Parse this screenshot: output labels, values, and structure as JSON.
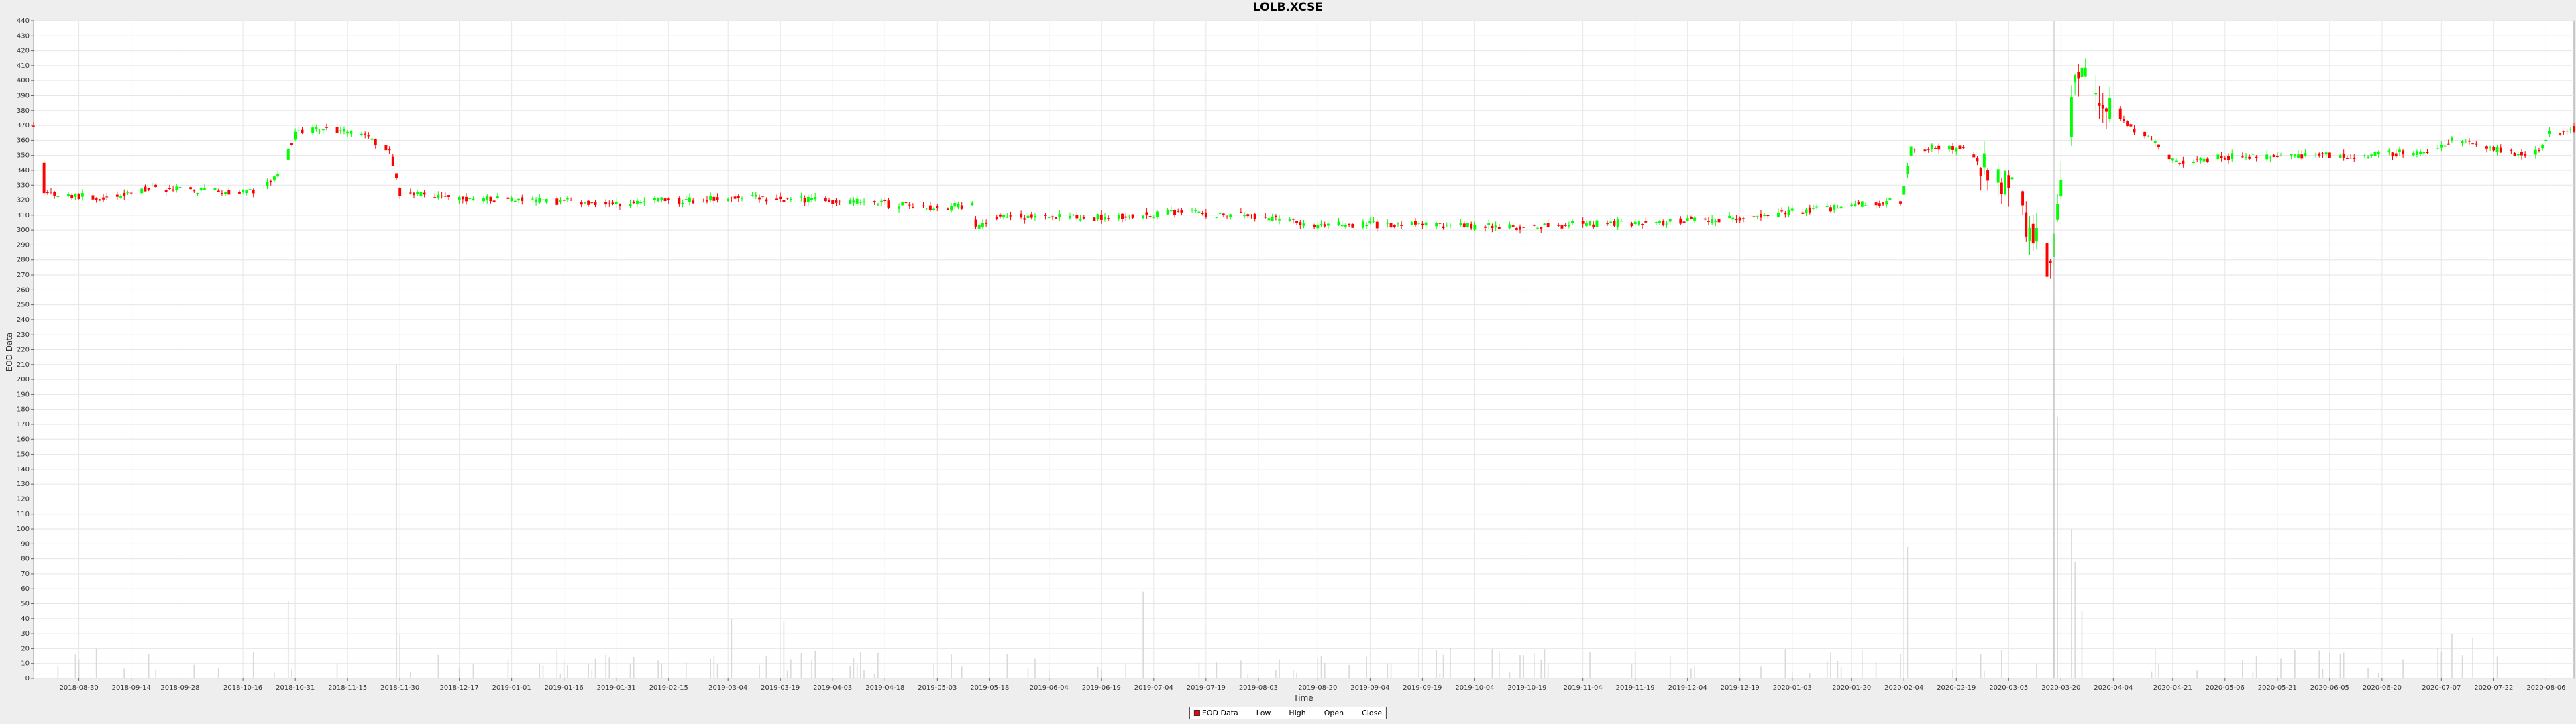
{
  "chart_data": {
    "type": "candlestick",
    "title": "LOLB.XCSE",
    "xlabel": "Time",
    "ylabel": "EOD Data",
    "ylim": [
      0,
      440
    ],
    "y_ticks": [
      0,
      10,
      20,
      30,
      40,
      50,
      60,
      70,
      80,
      90,
      100,
      110,
      120,
      130,
      140,
      150,
      160,
      170,
      180,
      190,
      200,
      210,
      220,
      230,
      240,
      250,
      260,
      270,
      280,
      290,
      300,
      310,
      320,
      330,
      340,
      350,
      360,
      370,
      380,
      390,
      400,
      410,
      420,
      430,
      440
    ],
    "x_range": [
      "2018-08-17",
      "2020-08-14"
    ],
    "x_ticks": [
      "2018-08-30",
      "2018-09-14",
      "2018-09-28",
      "2018-10-16",
      "2018-10-31",
      "2018-11-15",
      "2018-11-30",
      "2018-12-17",
      "2019-01-01",
      "2019-01-16",
      "2019-01-31",
      "2019-02-15",
      "2019-03-04",
      "2019-03-19",
      "2019-04-03",
      "2019-04-18",
      "2019-05-03",
      "2019-05-18",
      "2019-06-04",
      "2019-06-19",
      "2019-07-04",
      "2019-07-19",
      "2019-08-03",
      "2019-08-20",
      "2019-09-04",
      "2019-09-19",
      "2019-10-04",
      "2019-10-19",
      "2019-11-04",
      "2019-11-19",
      "2019-12-04",
      "2019-12-19",
      "2020-01-03",
      "2020-01-20",
      "2020-02-04",
      "2020-02-19",
      "2020-03-05",
      "2020-03-20",
      "2020-04-04",
      "2020-04-21",
      "2020-05-06",
      "2020-05-21",
      "2020-06-05",
      "2020-06-20",
      "2020-07-07",
      "2020-07-22",
      "2020-08-06"
    ],
    "grid": true,
    "legend_position": "bottom-center",
    "legend": [
      "EOD Data",
      "Low",
      "High",
      "Open",
      "Close"
    ],
    "up_color": "#00ff00",
    "down_color": "#ff0000",
    "price_anchors": [
      [
        "2018-08-20",
        325
      ],
      [
        "2018-09-05",
        322
      ],
      [
        "2018-09-20",
        328
      ],
      [
        "2018-10-05",
        326
      ],
      [
        "2018-10-20",
        326
      ],
      [
        "2018-10-26",
        335
      ],
      [
        "2018-10-31",
        365
      ],
      [
        "2018-11-10",
        368
      ],
      [
        "2018-11-20",
        362
      ],
      [
        "2018-11-27",
        352
      ],
      [
        "2018-11-30",
        325
      ],
      [
        "2018-12-10",
        322
      ],
      [
        "2019-01-01",
        320
      ],
      [
        "2019-02-01",
        318
      ],
      [
        "2019-03-10",
        322
      ],
      [
        "2019-04-01",
        320
      ],
      [
        "2019-05-01",
        315
      ],
      [
        "2019-05-13",
        316
      ],
      [
        "2019-05-14",
        300
      ],
      [
        "2019-05-20",
        310
      ],
      [
        "2019-06-15",
        308
      ],
      [
        "2019-07-10",
        312
      ],
      [
        "2019-08-01",
        310
      ],
      [
        "2019-08-20",
        303
      ],
      [
        "2019-09-15",
        304
      ],
      [
        "2019-10-15",
        302
      ],
      [
        "2019-11-15",
        305
      ],
      [
        "2019-12-15",
        307
      ],
      [
        "2020-01-15",
        315
      ],
      [
        "2020-02-03",
        320
      ],
      [
        "2020-02-06",
        355
      ],
      [
        "2020-02-20",
        355
      ],
      [
        "2020-02-27",
        342
      ],
      [
        "2020-03-05",
        330
      ],
      [
        "2020-03-12",
        295
      ],
      [
        "2020-03-17",
        275
      ],
      [
        "2020-03-20",
        340
      ],
      [
        "2020-03-24",
        400
      ],
      [
        "2020-03-26",
        405
      ],
      [
        "2020-04-02",
        380
      ],
      [
        "2020-04-15",
        360
      ],
      [
        "2020-04-22",
        345
      ],
      [
        "2020-05-10",
        350
      ],
      [
        "2020-06-10",
        350
      ],
      [
        "2020-07-01",
        352
      ],
      [
        "2020-07-10",
        360
      ],
      [
        "2020-07-25",
        352
      ],
      [
        "2020-08-04",
        352
      ],
      [
        "2020-08-07",
        365
      ],
      [
        "2020-08-14",
        368
      ]
    ],
    "volume_spikes": [
      [
        "2018-10-28",
        52
      ],
      [
        "2018-10-29",
        52
      ],
      [
        "2018-11-29",
        210
      ],
      [
        "2018-11-30",
        30
      ],
      [
        "2019-03-05",
        40
      ],
      [
        "2019-03-20",
        38
      ],
      [
        "2019-06-29",
        58
      ],
      [
        "2019-07-01",
        58
      ],
      [
        "2020-02-04",
        215
      ],
      [
        "2020-02-05",
        88
      ],
      [
        "2020-03-18",
        280
      ],
      [
        "2020-03-19",
        175
      ],
      [
        "2020-03-23",
        100
      ],
      [
        "2020-03-24",
        78
      ],
      [
        "2020-03-26",
        45
      ],
      [
        "2020-07-10",
        30
      ],
      [
        "2020-07-16",
        27
      ]
    ]
  }
}
